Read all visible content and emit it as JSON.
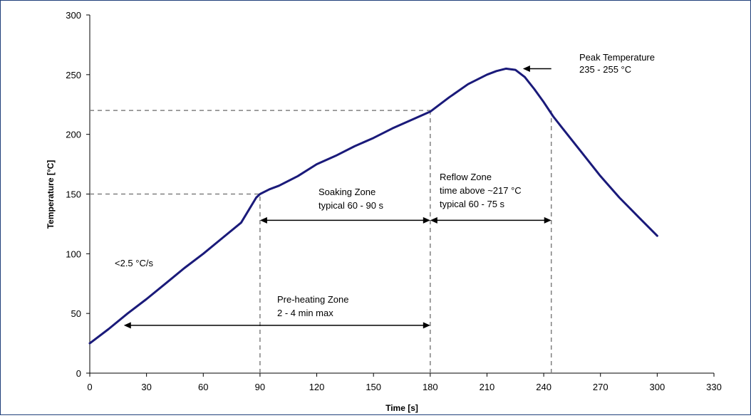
{
  "chart_data": {
    "type": "line",
    "title": "",
    "xlabel": "Time [s]",
    "ylabel": "Temperature [°C]",
    "xlim": [
      0,
      330
    ],
    "ylim": [
      0,
      300
    ],
    "x_ticks": [
      "0",
      "30",
      "60",
      "90",
      "120",
      "150",
      "180",
      "210",
      "240",
      "270",
      "300",
      "330"
    ],
    "y_ticks": [
      "0",
      "50",
      "100",
      "150",
      "200",
      "250",
      "300"
    ],
    "grid": false,
    "series": [
      {
        "color": "#1a1a7a",
        "points": [
          [
            0,
            25
          ],
          [
            10,
            37
          ],
          [
            20,
            50
          ],
          [
            30,
            62
          ],
          [
            40,
            75
          ],
          [
            50,
            88
          ],
          [
            60,
            100
          ],
          [
            70,
            113
          ],
          [
            80,
            126
          ],
          [
            88,
            147
          ],
          [
            90,
            150
          ],
          [
            95,
            154
          ],
          [
            100,
            157
          ],
          [
            110,
            165
          ],
          [
            120,
            175
          ],
          [
            130,
            182
          ],
          [
            140,
            190
          ],
          [
            150,
            197
          ],
          [
            160,
            205
          ],
          [
            170,
            212
          ],
          [
            180,
            219
          ],
          [
            190,
            231
          ],
          [
            200,
            242
          ],
          [
            210,
            250
          ],
          [
            215,
            253
          ],
          [
            220,
            255
          ],
          [
            225,
            254
          ],
          [
            230,
            248
          ],
          [
            235,
            238
          ],
          [
            240,
            227
          ],
          [
            245,
            215
          ],
          [
            250,
            205
          ],
          [
            260,
            185
          ],
          [
            270,
            165
          ],
          [
            280,
            147
          ],
          [
            290,
            131
          ],
          [
            300,
            115
          ]
        ]
      }
    ],
    "reference_lines": {
      "horizontal": [
        {
          "y": 150,
          "x_from": 0,
          "x_to": 90
        },
        {
          "y": 220,
          "x_from": 0,
          "x_to": 180
        }
      ],
      "vertical": [
        {
          "x": 90,
          "y_from": 0,
          "y_to": 150
        },
        {
          "x": 180,
          "y_from": 0,
          "y_to": 220
        },
        {
          "x": 244,
          "y_from": 0,
          "y_to": 220
        }
      ]
    },
    "span_arrows": [
      {
        "name": "soaking",
        "x1": 90,
        "x2": 180,
        "y": 128
      },
      {
        "name": "reflow",
        "x1": 180,
        "x2": 244,
        "y": 128
      },
      {
        "name": "preheat",
        "x1": 18,
        "x2": 180,
        "y": 40
      }
    ],
    "peak_arrow": {
      "x_from": 244,
      "x_to": 229,
      "y": 255
    },
    "annotations": {
      "peak_line1": "Peak Temperature",
      "peak_line2": "235 - 255 °C",
      "reflow_line1": "Reflow Zone",
      "reflow_line2": "time above ~217 °C",
      "reflow_line3": "typical 60 - 75 s",
      "soaking_line1": "Soaking Zone",
      "soaking_line2": "typical 60 - 90 s",
      "preheat_line1": "Pre-heating Zone",
      "preheat_line2": "2 - 4 min max",
      "ramp_rate": "<2.5 °C/s"
    }
  }
}
